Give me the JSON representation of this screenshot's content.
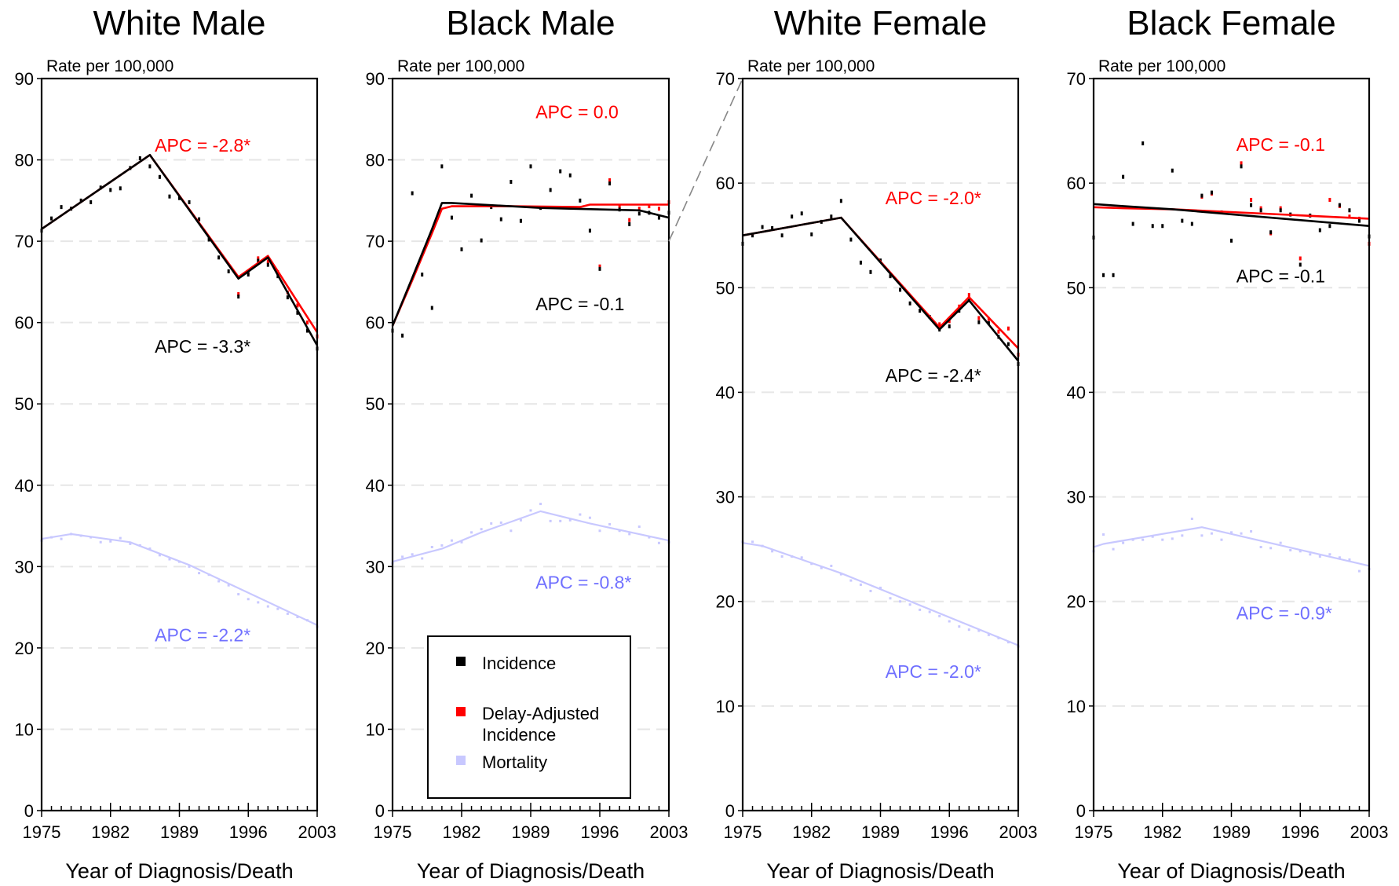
{
  "colors": {
    "incidence": "#000000",
    "delay_adjusted": "#ff0000",
    "mortality": "#c8c8ff",
    "mortality_label": "#7070ff",
    "grid": "#e6e6e6"
  },
  "legend": {
    "placement": "inside-bottom-of-second-panel",
    "items": [
      {
        "label": "Incidence",
        "color": "#000000"
      },
      {
        "label": "Delay-Adjusted Incidence",
        "color": "#ff0000"
      },
      {
        "label": "Mortality",
        "color": "#c8c8ff"
      }
    ]
  },
  "chart_data": [
    {
      "type": "line",
      "title": "White Male",
      "ylabel": "Rate per 100,000",
      "xlabel": "Year of Diagnosis/Death",
      "xlim": [
        1975,
        2003
      ],
      "ylim": [
        0,
        90
      ],
      "yticks": [
        0,
        10,
        20,
        30,
        40,
        50,
        60,
        70,
        80,
        90
      ],
      "xticks": [
        1975,
        1982,
        1989,
        1996,
        2003
      ],
      "grid": true,
      "series": [
        {
          "name": "Incidence",
          "kind": "trend",
          "x": [
            1975,
            1986,
            1995,
            1998,
            2003
          ],
          "y": [
            71.5,
            80.6,
            65.4,
            68.0,
            57.2
          ]
        },
        {
          "name": "Delay-Adjusted Incidence",
          "kind": "trend",
          "x": [
            1975,
            1986,
            1995,
            1998,
            2003
          ],
          "y": [
            71.5,
            80.6,
            65.6,
            68.2,
            58.8
          ]
        },
        {
          "name": "Mortality",
          "kind": "trend",
          "x": [
            1975,
            1978,
            1984,
            1990,
            2003
          ],
          "y": [
            33.4,
            34.0,
            33.0,
            30.2,
            22.8
          ]
        },
        {
          "name": "Incidence",
          "kind": "points",
          "x": [
            1975,
            1976,
            1977,
            1978,
            1979,
            1980,
            1981,
            1982,
            1983,
            1984,
            1985,
            1986,
            1987,
            1988,
            1989,
            1990,
            1991,
            1992,
            1993,
            1994,
            1995,
            1996,
            1997,
            1998,
            1999,
            2000,
            2001,
            2002,
            2003
          ],
          "y": [
            71.3,
            72.8,
            74.2,
            74.0,
            75.0,
            74.8,
            76.6,
            76.3,
            76.5,
            79.0,
            80.2,
            79.2,
            77.9,
            75.5,
            75.3,
            74.8,
            72.7,
            70.2,
            68.0,
            66.3,
            63.2,
            65.9,
            67.6,
            67.1,
            65.7,
            63.1,
            61.2,
            59.0,
            56.8
          ]
        },
        {
          "name": "Delay-Adjusted Incidence",
          "kind": "points",
          "x": [
            1995,
            1996,
            1997,
            1998,
            1999,
            2000,
            2001,
            2002,
            2003
          ],
          "y": [
            63.5,
            66.1,
            67.9,
            67.5,
            66.2,
            63.7,
            62.1,
            60.0,
            58.3
          ]
        },
        {
          "name": "Mortality",
          "kind": "points",
          "x": [
            1975,
            1976,
            1977,
            1978,
            1979,
            1980,
            1981,
            1982,
            1983,
            1984,
            1985,
            1986,
            1987,
            1988,
            1989,
            1990,
            1991,
            1992,
            1993,
            1994,
            1995,
            1996,
            1997,
            1998,
            1999,
            2000,
            2001,
            2002,
            2003
          ],
          "y": [
            33.2,
            33.6,
            33.4,
            34.0,
            33.8,
            33.6,
            33.0,
            33.1,
            33.5,
            32.8,
            32.6,
            32.2,
            31.4,
            30.9,
            30.6,
            30.0,
            29.2,
            29.0,
            28.2,
            27.7,
            26.6,
            26.0,
            25.6,
            25.1,
            24.8,
            24.2,
            23.8,
            23.4,
            22.6
          ]
        }
      ],
      "annotations": [
        {
          "text": "APC = -2.8*",
          "series": "Delay-Adjusted Incidence",
          "x": 1986.5,
          "y": 81.0
        },
        {
          "text": "APC = -3.3*",
          "series": "Incidence",
          "x": 1986.5,
          "y": 56.3
        },
        {
          "text": "APC = -2.2*",
          "series": "Mortality",
          "x": 1986.5,
          "y": 20.8
        }
      ]
    },
    {
      "type": "line",
      "title": "Black Male",
      "ylabel": "Rate per 100,000",
      "xlabel": "Year of Diagnosis/Death",
      "xlim": [
        1975,
        2003
      ],
      "ylim": [
        0,
        90
      ],
      "yticks": [
        0,
        10,
        20,
        30,
        40,
        50,
        60,
        70,
        80,
        90
      ],
      "xticks": [
        1975,
        1982,
        1989,
        1996,
        2003
      ],
      "grid": true,
      "series": [
        {
          "name": "Incidence",
          "kind": "trend",
          "x": [
            1975,
            1977,
            1979,
            1980,
            1981,
            1990,
            1993,
            2000,
            2003
          ],
          "y": [
            59.6,
            65.5,
            71.5,
            74.7,
            74.7,
            74.1,
            74.0,
            73.8,
            72.9
          ]
        },
        {
          "name": "Delay-Adjusted Incidence",
          "kind": "trend",
          "x": [
            1975,
            1977,
            1979,
            1980,
            1981,
            1987,
            1994,
            1995,
            2003
          ],
          "y": [
            59.6,
            65.2,
            71.0,
            74.0,
            74.3,
            74.3,
            74.2,
            74.5,
            74.5
          ]
        },
        {
          "name": "Mortality",
          "kind": "trend",
          "x": [
            1975,
            1980,
            1984,
            1990,
            1995,
            2003
          ],
          "y": [
            30.6,
            32.2,
            34.2,
            36.8,
            35.3,
            33.2
          ]
        },
        {
          "name": "Incidence",
          "kind": "points",
          "x": [
            1975,
            1976,
            1977,
            1978,
            1979,
            1980,
            1981,
            1982,
            1983,
            1984,
            1985,
            1986,
            1987,
            1988,
            1989,
            1990,
            1991,
            1992,
            1993,
            1994,
            1995,
            1996,
            1997,
            1998,
            1999,
            2000,
            2001,
            2002,
            2003
          ],
          "y": [
            59.0,
            58.4,
            75.9,
            65.9,
            61.8,
            79.2,
            72.9,
            69.0,
            75.6,
            70.1,
            74.2,
            72.7,
            77.3,
            72.5,
            79.2,
            74.1,
            76.3,
            78.6,
            78.1,
            75.0,
            71.3,
            66.6,
            77.1,
            73.9,
            72.1,
            73.4,
            73.5,
            72.9,
            73.5
          ]
        },
        {
          "name": "Delay-Adjusted Incidence",
          "kind": "points",
          "x": [
            1996,
            1997,
            1998,
            1999,
            2000,
            2001,
            2002,
            2003
          ],
          "y": [
            66.9,
            77.5,
            74.3,
            72.6,
            74.0,
            74.3,
            74.0,
            74.8
          ]
        },
        {
          "name": "Mortality",
          "kind": "points",
          "x": [
            1975,
            1976,
            1977,
            1978,
            1979,
            1980,
            1981,
            1982,
            1983,
            1984,
            1985,
            1986,
            1987,
            1988,
            1989,
            1990,
            1991,
            1992,
            1993,
            1994,
            1995,
            1996,
            1997,
            1998,
            1999,
            2000,
            2001,
            2002,
            2003
          ],
          "y": [
            30.4,
            31.2,
            31.5,
            31.0,
            32.4,
            32.6,
            33.2,
            33.0,
            34.2,
            34.6,
            35.3,
            35.4,
            34.4,
            35.7,
            36.9,
            37.7,
            35.6,
            35.6,
            35.7,
            36.4,
            36.0,
            34.4,
            35.2,
            34.4,
            34.0,
            34.9,
            33.6,
            32.9,
            33.0
          ]
        }
      ],
      "annotations": [
        {
          "text": "APC = 0.0",
          "series": "Delay-Adjusted Incidence",
          "x": 1989.5,
          "y": 85.1
        },
        {
          "text": "APC = -0.1",
          "series": "Incidence",
          "x": 1989.5,
          "y": 61.5
        },
        {
          "text": "APC = -0.8*",
          "series": "Mortality",
          "x": 1989.5,
          "y": 27.3
        }
      ]
    },
    {
      "type": "line",
      "title": "White Female",
      "ylabel": "Rate per 100,000",
      "xlabel": "Year of Diagnosis/Death",
      "xlim": [
        1975,
        2003
      ],
      "ylim": [
        0,
        70
      ],
      "yticks": [
        0,
        10,
        20,
        30,
        40,
        50,
        60,
        70
      ],
      "xticks": [
        1975,
        1982,
        1989,
        1996,
        2003
      ],
      "grid": true,
      "series": [
        {
          "name": "Incidence",
          "kind": "trend",
          "x": [
            1975,
            1985,
            1995,
            1998,
            2003
          ],
          "y": [
            55.0,
            56.7,
            46.0,
            48.8,
            43.0
          ]
        },
        {
          "name": "Delay-Adjusted Incidence",
          "kind": "trend",
          "x": [
            1975,
            1985,
            1995,
            1998,
            2003
          ],
          "y": [
            55.0,
            56.7,
            46.2,
            49.1,
            44.2
          ]
        },
        {
          "name": "Mortality",
          "kind": "trend",
          "x": [
            1975,
            1977,
            1985,
            2003
          ],
          "y": [
            25.6,
            25.3,
            22.7,
            15.8
          ]
        },
        {
          "name": "Incidence",
          "kind": "points",
          "x": [
            1975,
            1976,
            1977,
            1978,
            1979,
            1980,
            1981,
            1982,
            1983,
            1984,
            1985,
            1986,
            1987,
            1988,
            1989,
            1990,
            1991,
            1992,
            1993,
            1994,
            1995,
            1996,
            1997,
            1998,
            1999,
            2000,
            2001,
            2002,
            2003
          ],
          "y": [
            54.2,
            55.0,
            55.8,
            55.7,
            55.0,
            56.8,
            57.1,
            55.1,
            56.3,
            56.8,
            58.3,
            54.6,
            52.4,
            51.5,
            52.6,
            51.1,
            49.8,
            48.5,
            47.8,
            47.2,
            46.0,
            46.3,
            47.8,
            48.8,
            46.7,
            46.6,
            45.3,
            44.6,
            42.7
          ]
        },
        {
          "name": "Delay-Adjusted Incidence",
          "kind": "points",
          "x": [
            1995,
            1996,
            1997,
            1998,
            1999,
            2000,
            2001,
            2002,
            2003
          ],
          "y": [
            46.5,
            46.8,
            48.2,
            49.3,
            47.1,
            47.0,
            45.8,
            46.1,
            43.6
          ]
        },
        {
          "name": "Mortality",
          "kind": "points",
          "x": [
            1975,
            1976,
            1977,
            1978,
            1979,
            1980,
            1981,
            1982,
            1983,
            1984,
            1985,
            1986,
            1987,
            1988,
            1989,
            1990,
            1991,
            1992,
            1993,
            1994,
            1995,
            1996,
            1997,
            1998,
            1999,
            2000,
            2001,
            2002,
            2003
          ],
          "y": [
            25.7,
            25.7,
            25.3,
            24.8,
            24.3,
            24.3,
            24.2,
            23.6,
            23.2,
            23.4,
            22.6,
            22.0,
            21.6,
            21.0,
            21.3,
            20.3,
            20.0,
            19.7,
            19.2,
            19.0,
            18.6,
            18.1,
            17.6,
            17.3,
            17.2,
            16.8,
            16.5,
            16.1,
            15.7
          ]
        }
      ],
      "annotations": [
        {
          "text": "APC = -2.0*",
          "series": "Delay-Adjusted Incidence",
          "x": 1989.5,
          "y": 58.0
        },
        {
          "text": "APC = -2.4*",
          "series": "Incidence",
          "x": 1989.5,
          "y": 41.0
        },
        {
          "text": "APC = -2.0*",
          "series": "Mortality",
          "x": 1989.5,
          "y": 12.7
        }
      ]
    },
    {
      "type": "line",
      "title": "Black Female",
      "ylabel": "Rate per 100,000",
      "xlabel": "Year of Diagnosis/Death",
      "xlim": [
        1975,
        2003
      ],
      "ylim": [
        0,
        70
      ],
      "yticks": [
        0,
        10,
        20,
        30,
        40,
        50,
        60,
        70
      ],
      "xticks": [
        1975,
        1982,
        1989,
        1996,
        2003
      ],
      "grid": true,
      "series": [
        {
          "name": "Incidence",
          "kind": "trend",
          "x": [
            1975,
            1978,
            1983,
            2003
          ],
          "y": [
            58.0,
            57.8,
            57.5,
            55.9
          ]
        },
        {
          "name": "Delay-Adjusted Incidence",
          "kind": "trend",
          "x": [
            1975,
            1978,
            1983,
            2003
          ],
          "y": [
            57.7,
            57.6,
            57.5,
            56.6
          ]
        },
        {
          "name": "Mortality",
          "kind": "trend",
          "x": [
            1975,
            1976,
            1986,
            2003
          ],
          "y": [
            25.2,
            25.5,
            27.1,
            23.4
          ]
        },
        {
          "name": "Incidence",
          "kind": "points",
          "x": [
            1975,
            1976,
            1977,
            1978,
            1979,
            1980,
            1981,
            1982,
            1983,
            1984,
            1985,
            1986,
            1987,
            1988,
            1989,
            1990,
            1991,
            1992,
            1993,
            1994,
            1995,
            1996,
            1997,
            1998,
            1999,
            2000,
            2001,
            2002,
            2003
          ],
          "y": [
            54.8,
            51.2,
            51.2,
            60.6,
            56.1,
            63.8,
            55.9,
            55.9,
            61.2,
            56.4,
            56.1,
            58.8,
            59.1,
            57.2,
            54.5,
            61.6,
            57.9,
            57.4,
            55.3,
            57.4,
            57.0,
            52.2,
            56.9,
            55.5,
            55.9,
            57.9,
            57.4,
            56.4,
            54.9
          ]
        },
        {
          "name": "Delay-Adjusted Incidence",
          "kind": "points",
          "x": [
            1986,
            1987,
            1990,
            1991,
            1992,
            1993,
            1994,
            1996,
            1999,
            2000,
            2001,
            2002,
            2003
          ],
          "y": [
            58.7,
            59.0,
            61.9,
            58.4,
            57.6,
            55.2,
            57.6,
            52.8,
            58.4,
            57.8,
            56.8,
            56.6,
            54.2
          ]
        },
        {
          "name": "Mortality",
          "kind": "points",
          "x": [
            1975,
            1976,
            1977,
            1978,
            1979,
            1980,
            1981,
            1982,
            1983,
            1984,
            1985,
            1986,
            1987,
            1988,
            1989,
            1990,
            1991,
            1992,
            1993,
            1994,
            1995,
            1996,
            1997,
            1998,
            1999,
            2000,
            2001,
            2002,
            2003
          ],
          "y": [
            24.8,
            26.4,
            25.0,
            25.6,
            25.9,
            25.9,
            26.2,
            25.9,
            26.0,
            26.3,
            27.9,
            26.3,
            26.5,
            25.9,
            26.6,
            26.5,
            26.7,
            25.2,
            25.1,
            25.6,
            24.9,
            24.8,
            24.5,
            24.3,
            24.5,
            24.2,
            24.0,
            22.9,
            23.1
          ]
        }
      ],
      "annotations": [
        {
          "text": "APC = -0.1",
          "series": "Delay-Adjusted Incidence",
          "x": 1989.5,
          "y": 63.1
        },
        {
          "text": "APC = -0.1",
          "series": "Incidence",
          "x": 1989.5,
          "y": 50.5
        },
        {
          "text": "APC = -0.9*",
          "series": "Mortality",
          "x": 1989.5,
          "y": 18.3
        }
      ]
    }
  ]
}
